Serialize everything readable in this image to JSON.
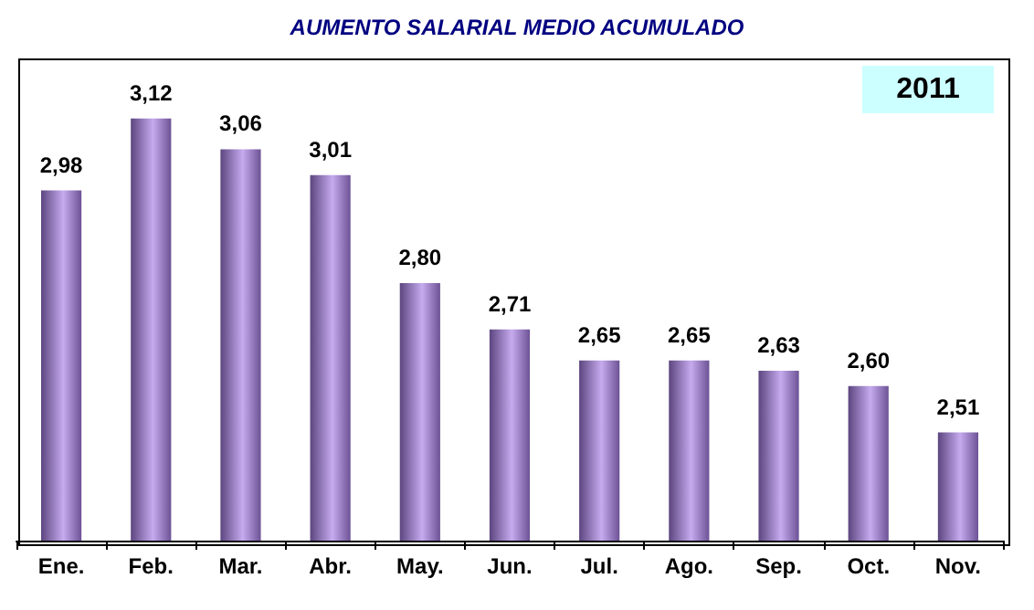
{
  "chart_data": {
    "type": "bar",
    "title": "AUMENTO SALARIAL MEDIO ACUMULADO",
    "categories": [
      "Ene.",
      "Feb.",
      "Mar.",
      "Abr.",
      "May.",
      "Jun.",
      "Jul.",
      "Ago.",
      "Sep.",
      "Oct.",
      "Nov."
    ],
    "values": [
      2.98,
      3.12,
      3.06,
      3.01,
      2.8,
      2.71,
      2.65,
      2.65,
      2.63,
      2.6,
      2.51
    ],
    "color": "#a77ee6",
    "ylim": [
      2.3,
      3.24
    ],
    "annotations": [
      "2011"
    ],
    "value_labels": [
      "2,98",
      "3,12",
      "3,06",
      "3,01",
      "2,80",
      "2,71",
      "2,65",
      "2,65",
      "2,63",
      "2,60",
      "2,51"
    ],
    "tick_labels": "x",
    "grid": false
  }
}
